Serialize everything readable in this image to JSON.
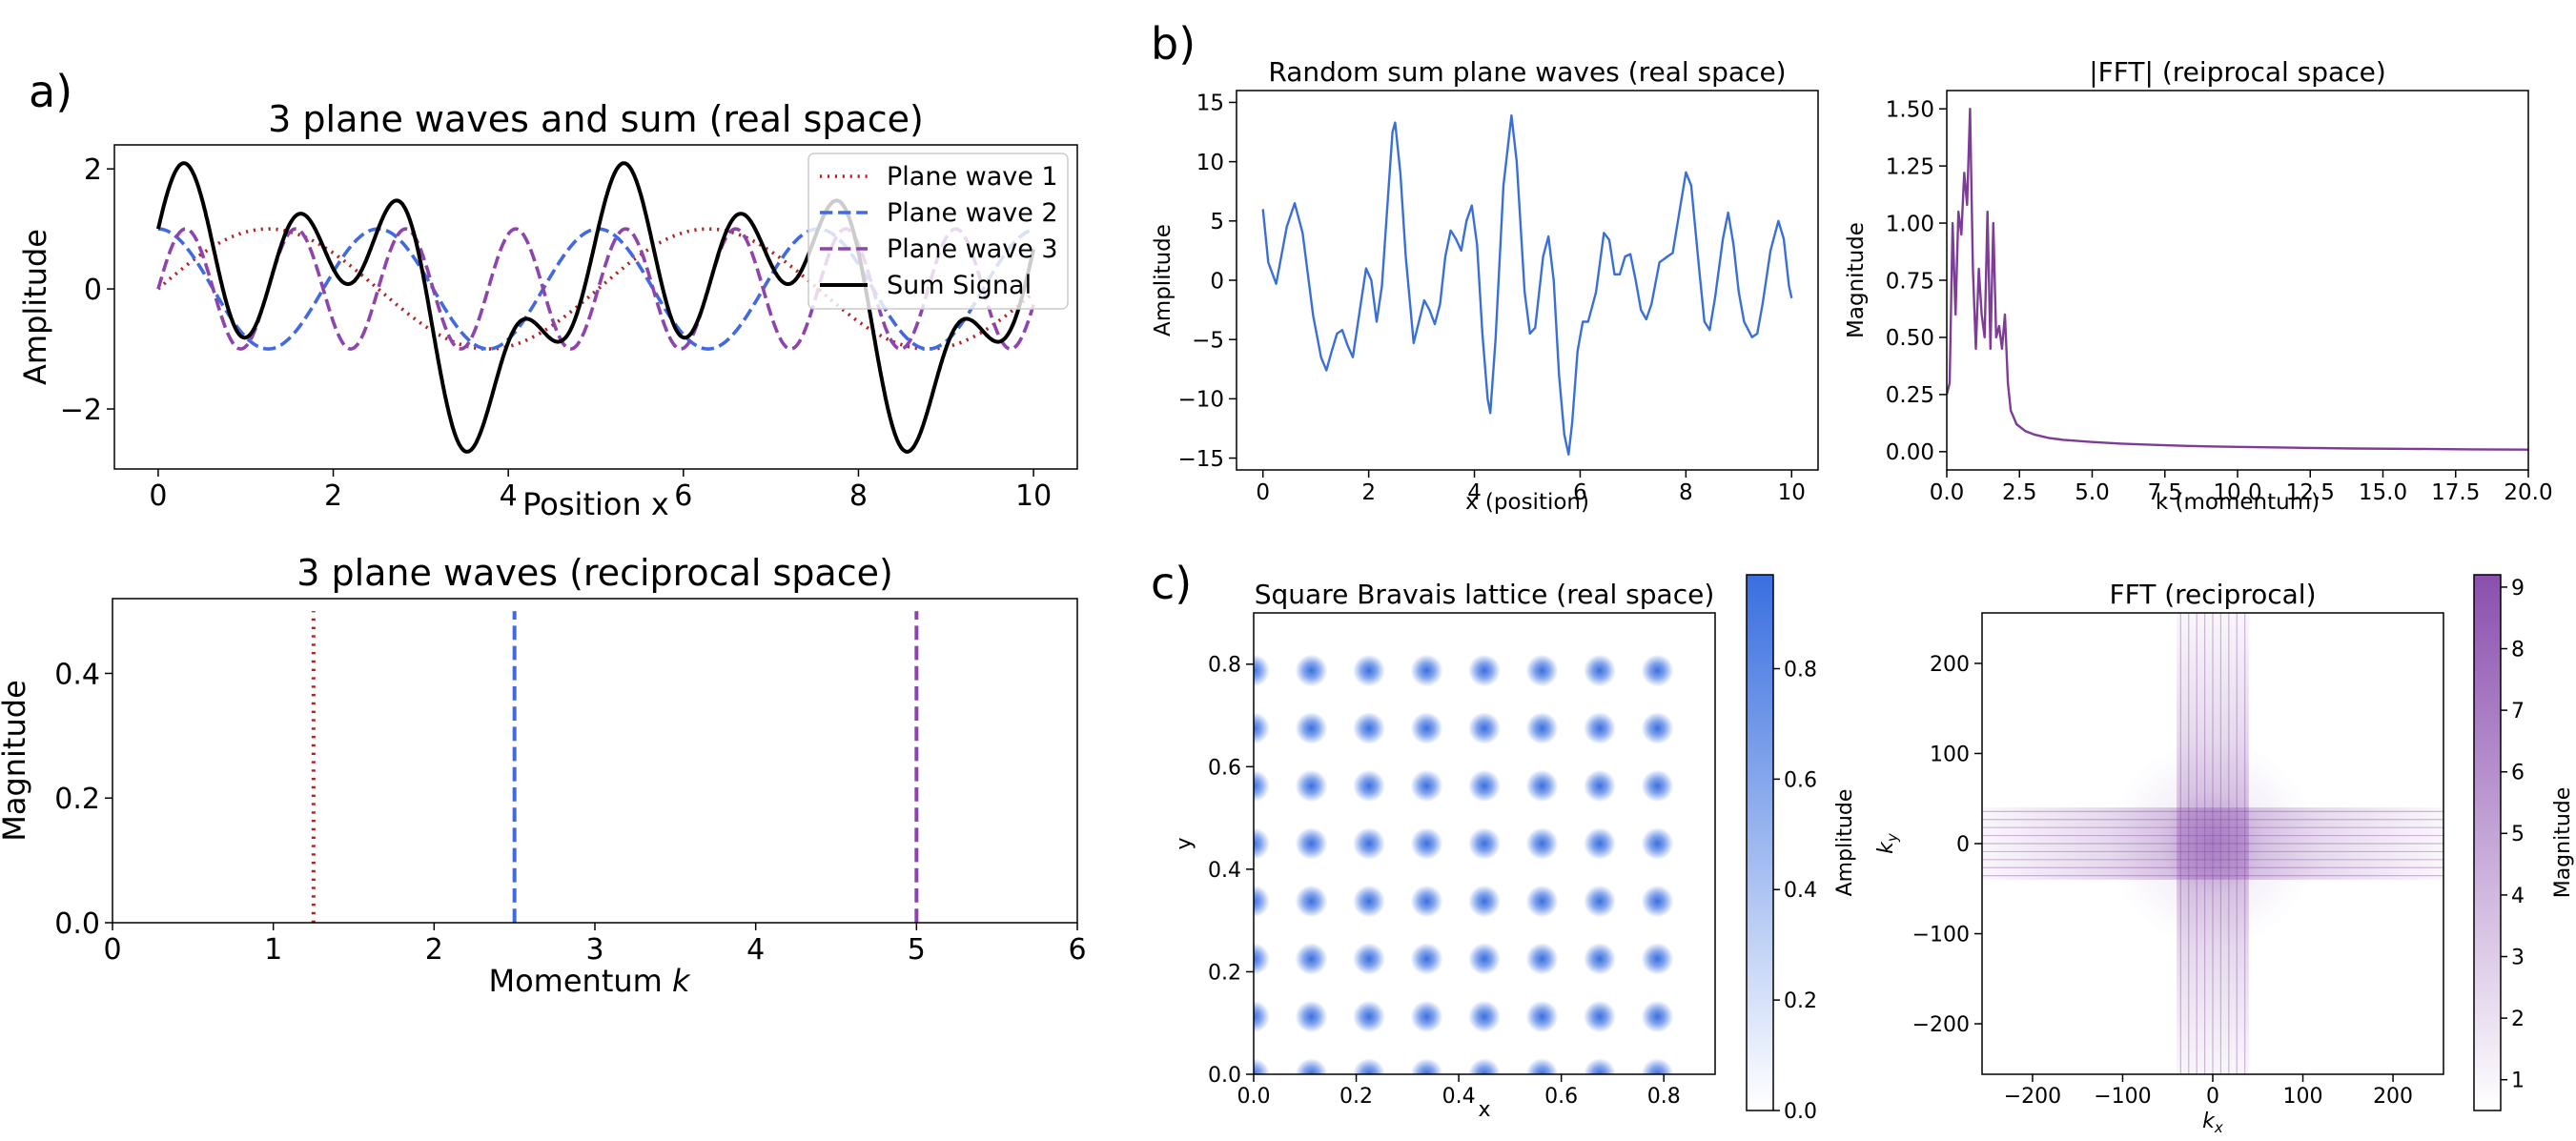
{
  "panel_labels": {
    "a": "a)",
    "b": "b)",
    "c": "c)"
  },
  "chart_data": [
    {
      "id": "waves_real",
      "type": "line",
      "title": "3 plane waves and sum (real space)",
      "xlabel": "Position x",
      "ylabel": "Amplitude",
      "xlim": [
        -0.5,
        10.5
      ],
      "ylim": [
        -3.0,
        2.4
      ],
      "xticks": [
        0,
        2,
        4,
        6,
        8,
        10
      ],
      "yticks": [
        -2,
        0,
        2
      ],
      "xtick_labels": [
        "0",
        "2",
        "4",
        "6",
        "8",
        "10"
      ],
      "ytick_labels": [
        "−2",
        "0",
        "2"
      ],
      "legend_position": "top-right",
      "series": [
        {
          "name": "Plane wave 1",
          "k": 1.25,
          "func": "sin",
          "amplitude": 1,
          "color": "#b22222",
          "style": "dotted"
        },
        {
          "name": "Plane wave 2",
          "k": 2.5,
          "func": "cos",
          "amplitude": 1,
          "color": "#4169e1",
          "style": "dashed"
        },
        {
          "name": "Plane wave 3",
          "k": 5.0,
          "func": "sin",
          "amplitude": 1,
          "color": "#8e44ad",
          "style": "dashed"
        },
        {
          "name": "Sum Signal",
          "func": "sum",
          "color": "#000000",
          "style": "solid"
        }
      ],
      "x_range": [
        0,
        10
      ]
    },
    {
      "id": "waves_reciprocal",
      "type": "line",
      "title": "3 plane waves (reciprocal space)",
      "xlabel": "Momentum k",
      "ylabel": "Magnitude",
      "xlim": [
        0,
        6
      ],
      "ylim": [
        0,
        0.52
      ],
      "xticks": [
        0,
        1,
        2,
        3,
        4,
        5,
        6
      ],
      "yticks": [
        0.0,
        0.2,
        0.4
      ],
      "xtick_labels": [
        "0",
        "1",
        "2",
        "3",
        "4",
        "5",
        "6"
      ],
      "ytick_labels": [
        "0.0",
        "0.2",
        "0.4"
      ],
      "peaks": [
        {
          "k": 1.25,
          "magnitude": 0.5,
          "color": "#b22222",
          "style": "dotted"
        },
        {
          "k": 2.5,
          "magnitude": 0.5,
          "color": "#4169e1",
          "style": "dashed"
        },
        {
          "k": 5.0,
          "magnitude": 0.5,
          "color": "#8e44ad",
          "style": "dashed"
        }
      ]
    },
    {
      "id": "random_real",
      "type": "line",
      "title": "Random sum plane waves (real space)",
      "xlabel": "x (position)",
      "ylabel": "Amplitude",
      "xlim": [
        -0.5,
        10.5
      ],
      "ylim": [
        -16,
        16
      ],
      "xticks": [
        0,
        2,
        4,
        6,
        8,
        10
      ],
      "yticks": [
        -15,
        -10,
        -5,
        0,
        5,
        10,
        15
      ],
      "xtick_labels": [
        "0",
        "2",
        "4",
        "6",
        "8",
        "10"
      ],
      "ytick_labels": [
        "−15",
        "−10",
        "−5",
        "0",
        "5",
        "10",
        "15"
      ],
      "color": "#3a6fd8",
      "points": [
        [
          0,
          6
        ],
        [
          0.1,
          1.5
        ],
        [
          0.25,
          -0.3
        ],
        [
          0.45,
          4.5
        ],
        [
          0.6,
          6.5
        ],
        [
          0.75,
          4
        ],
        [
          0.95,
          -3
        ],
        [
          1.1,
          -6.5
        ],
        [
          1.2,
          -7.6
        ],
        [
          1.3,
          -6
        ],
        [
          1.4,
          -4.5
        ],
        [
          1.5,
          -4.2
        ],
        [
          1.6,
          -5.5
        ],
        [
          1.7,
          -6.5
        ],
        [
          1.85,
          -2
        ],
        [
          1.95,
          1
        ],
        [
          2.05,
          0
        ],
        [
          2.15,
          -3.5
        ],
        [
          2.25,
          -0.5
        ],
        [
          2.35,
          6
        ],
        [
          2.45,
          12.5
        ],
        [
          2.5,
          13.3
        ],
        [
          2.6,
          9
        ],
        [
          2.7,
          2
        ],
        [
          2.85,
          -5.3
        ],
        [
          2.95,
          -3.5
        ],
        [
          3.05,
          -1.7
        ],
        [
          3.15,
          -2.5
        ],
        [
          3.25,
          -3.7
        ],
        [
          3.35,
          -2
        ],
        [
          3.45,
          2
        ],
        [
          3.55,
          4.2
        ],
        [
          3.65,
          3.5
        ],
        [
          3.75,
          2.5
        ],
        [
          3.85,
          5
        ],
        [
          3.95,
          6.3
        ],
        [
          4.05,
          3
        ],
        [
          4.15,
          -4.5
        ],
        [
          4.25,
          -10
        ],
        [
          4.3,
          -11.2
        ],
        [
          4.4,
          -5
        ],
        [
          4.55,
          8
        ],
        [
          4.7,
          13.9
        ],
        [
          4.8,
          10
        ],
        [
          4.95,
          -1
        ],
        [
          5.05,
          -4.5
        ],
        [
          5.15,
          -4
        ],
        [
          5.3,
          2
        ],
        [
          5.4,
          3.7
        ],
        [
          5.5,
          0
        ],
        [
          5.6,
          -8
        ],
        [
          5.7,
          -13
        ],
        [
          5.78,
          -14.7
        ],
        [
          5.85,
          -12
        ],
        [
          5.95,
          -6
        ],
        [
          6.05,
          -3.5
        ],
        [
          6.15,
          -3.5
        ],
        [
          6.3,
          -1
        ],
        [
          6.45,
          4
        ],
        [
          6.55,
          3.4
        ],
        [
          6.65,
          0.5
        ],
        [
          6.75,
          0.5
        ],
        [
          6.85,
          2
        ],
        [
          6.95,
          2.2
        ],
        [
          7.05,
          0
        ],
        [
          7.15,
          -2.5
        ],
        [
          7.25,
          -3.3
        ],
        [
          7.35,
          -2
        ],
        [
          7.5,
          1.5
        ],
        [
          7.65,
          2
        ],
        [
          7.75,
          2.3
        ],
        [
          7.85,
          5
        ],
        [
          8.0,
          9.1
        ],
        [
          8.1,
          8
        ],
        [
          8.25,
          1
        ],
        [
          8.35,
          -3.5
        ],
        [
          8.45,
          -4.2
        ],
        [
          8.55,
          -1.5
        ],
        [
          8.7,
          3.5
        ],
        [
          8.8,
          5.7
        ],
        [
          8.9,
          3
        ],
        [
          9.0,
          -1
        ],
        [
          9.1,
          -3.5
        ],
        [
          9.25,
          -4.8
        ],
        [
          9.35,
          -4.5
        ],
        [
          9.45,
          -2
        ],
        [
          9.6,
          2.5
        ],
        [
          9.75,
          5
        ],
        [
          9.85,
          3.5
        ],
        [
          9.95,
          -0.5
        ],
        [
          10.0,
          -1.5
        ]
      ]
    },
    {
      "id": "fft_1d",
      "type": "line",
      "title": "|FFT| (reiprocal space)",
      "xlabel": "k (momentum)",
      "ylabel": "Magnitude",
      "xlim": [
        0,
        20
      ],
      "ylim": [
        -0.08,
        1.58
      ],
      "xticks": [
        0,
        2.5,
        5,
        7.5,
        10,
        12.5,
        15,
        17.5,
        20
      ],
      "yticks": [
        0,
        0.25,
        0.5,
        0.75,
        1.0,
        1.25,
        1.5
      ],
      "xtick_labels": [
        "0.0",
        "2.5",
        "5.0",
        "7.5",
        "10.0",
        "12.5",
        "15.0",
        "17.5",
        "20.0"
      ],
      "ytick_labels": [
        "0.00",
        "0.25",
        "0.50",
        "0.75",
        "1.00",
        "1.25",
        "1.50"
      ],
      "color": "#7d3c98",
      "points": [
        [
          0.0,
          0.25
        ],
        [
          0.1,
          0.3
        ],
        [
          0.2,
          1.0
        ],
        [
          0.3,
          0.6
        ],
        [
          0.4,
          1.05
        ],
        [
          0.5,
          0.95
        ],
        [
          0.6,
          1.22
        ],
        [
          0.7,
          1.08
        ],
        [
          0.8,
          1.5
        ],
        [
          0.9,
          0.8
        ],
        [
          1.0,
          0.45
        ],
        [
          1.1,
          0.8
        ],
        [
          1.2,
          0.6
        ],
        [
          1.3,
          0.5
        ],
        [
          1.4,
          1.05
        ],
        [
          1.5,
          0.45
        ],
        [
          1.6,
          1.0
        ],
        [
          1.7,
          0.5
        ],
        [
          1.8,
          0.55
        ],
        [
          1.9,
          0.45
        ],
        [
          2.0,
          0.6
        ],
        [
          2.1,
          0.3
        ],
        [
          2.2,
          0.18
        ],
        [
          2.4,
          0.12
        ],
        [
          2.7,
          0.09
        ],
        [
          3.0,
          0.075
        ],
        [
          3.5,
          0.06
        ],
        [
          4,
          0.052
        ],
        [
          5,
          0.042
        ],
        [
          6,
          0.035
        ],
        [
          7,
          0.03
        ],
        [
          8,
          0.026
        ],
        [
          9,
          0.023
        ],
        [
          10,
          0.021
        ],
        [
          12,
          0.017
        ],
        [
          14,
          0.014
        ],
        [
          16,
          0.012
        ],
        [
          18,
          0.01
        ],
        [
          20,
          0.009
        ]
      ]
    },
    {
      "id": "lattice_real",
      "type": "heatmap",
      "title": "Square Bravais lattice (real space)",
      "xlabel": "x",
      "ylabel": "y",
      "xlim": [
        0,
        0.9
      ],
      "ylim": [
        0,
        0.9
      ],
      "xticks": [
        0,
        0.2,
        0.4,
        0.6,
        0.8
      ],
      "yticks": [
        0,
        0.2,
        0.4,
        0.6,
        0.8
      ],
      "xtick_labels": [
        "0.0",
        "0.2",
        "0.4",
        "0.6",
        "0.8"
      ],
      "ytick_labels": [
        "0.0",
        "0.2",
        "0.4",
        "0.6",
        "0.8"
      ],
      "lattice_spacing": 0.1125,
      "lattice_count": 8,
      "max_amplitude": 0.95,
      "color": "#3a6fe0",
      "colorbar": {
        "label": "Amplitude",
        "range": [
          0,
          0.97
        ],
        "ticks": [
          0.0,
          0.2,
          0.4,
          0.6,
          0.8
        ],
        "tick_labels": [
          "0.0",
          "0.2",
          "0.4",
          "0.6",
          "0.8"
        ]
      }
    },
    {
      "id": "lattice_fft",
      "type": "heatmap",
      "title": "FFT (reciprocal)",
      "xlabel": "k_x",
      "ylabel": "k_y",
      "xlim": [
        -256,
        256
      ],
      "ylim": [
        -256,
        256
      ],
      "xticks": [
        -200,
        -100,
        0,
        100,
        200
      ],
      "yticks": [
        -200,
        -100,
        0,
        100,
        200
      ],
      "xtick_labels": [
        "−200",
        "−100",
        "0",
        "100",
        "200"
      ],
      "ytick_labels": [
        "−200",
        "−100",
        "0",
        "100",
        "200"
      ],
      "line_spacing": 8.9,
      "line_count": 9,
      "color": "#7d3c98",
      "colorbar": {
        "label": "Magnitude",
        "range": [
          0.5,
          9.2
        ],
        "ticks": [
          1,
          2,
          3,
          4,
          5,
          6,
          7,
          8,
          9
        ],
        "tick_labels": [
          "1",
          "2",
          "3",
          "4",
          "5",
          "6",
          "7",
          "8",
          "9"
        ]
      }
    }
  ]
}
